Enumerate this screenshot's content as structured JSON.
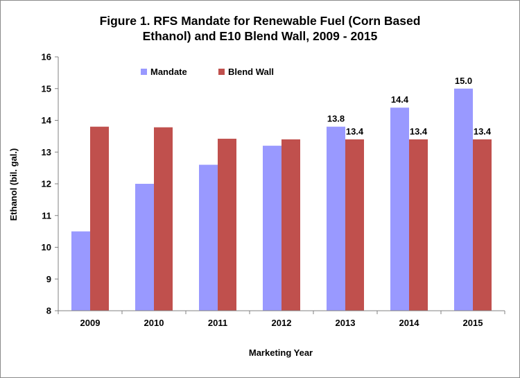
{
  "colors": {
    "mandate": "#9999ff",
    "blend_wall": "#c0504d",
    "axis": "#808080",
    "text": "#000000",
    "background": "#ffffff"
  },
  "chart_data": {
    "type": "bar",
    "title_lines": [
      "Figure 1. RFS Mandate for Renewable Fuel (Corn Based",
      "Ethanol) and E10 Blend Wall, 2009  - 2015"
    ],
    "xlabel": "Marketing Year",
    "ylabel": "Ethanol (bil. gal.)",
    "ylim": [
      8,
      16
    ],
    "yticks": [
      "8",
      "9",
      "10",
      "11",
      "12",
      "13",
      "14",
      "15",
      "16"
    ],
    "categories": [
      "2009",
      "2010",
      "2011",
      "2012",
      "2013",
      "2014",
      "2015"
    ],
    "series": [
      {
        "name": "Mandate",
        "color": "#9999ff",
        "values": [
          10.5,
          12.0,
          12.6,
          13.2,
          13.8,
          14.4,
          15.0
        ],
        "labels": [
          "",
          "",
          "",
          "",
          "13.8",
          "14.4",
          "15.0"
        ]
      },
      {
        "name": "Blend Wall",
        "color": "#c0504d",
        "values": [
          13.8,
          13.78,
          13.42,
          13.4,
          13.4,
          13.4,
          13.4
        ],
        "labels": [
          "",
          "",
          "",
          "",
          "13.4",
          "13.4",
          "13.4"
        ]
      }
    ],
    "legend": "top-left",
    "grid": false
  }
}
